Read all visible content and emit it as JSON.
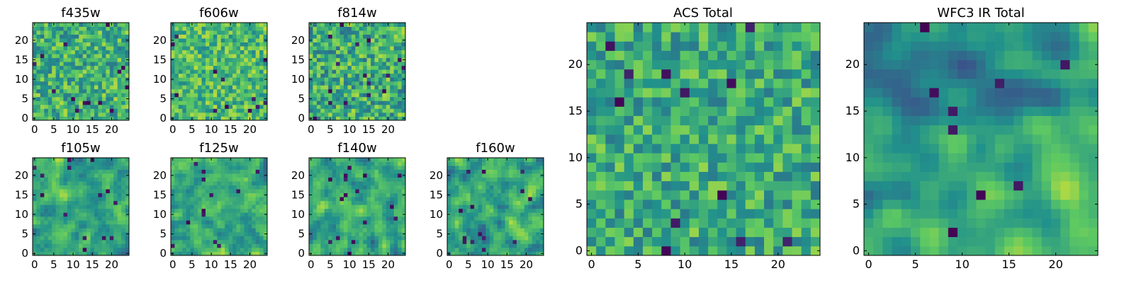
{
  "figure": {
    "background": "#ffffff",
    "colormap": "viridis",
    "colormap_stops": [
      "#440154",
      "#3b528b",
      "#21918c",
      "#5ec962",
      "#fde725"
    ]
  },
  "chart_data": [
    {
      "type": "heatmap",
      "title": "f435w",
      "grid_size": 25,
      "xlim": [
        -0.5,
        24.5
      ],
      "ylim": [
        -0.5,
        24.5
      ],
      "xticks": [
        0,
        5,
        10,
        15,
        20
      ],
      "yticks": [
        0,
        5,
        10,
        15,
        20
      ],
      "xlabel": "",
      "ylabel": "",
      "seed": 11,
      "smoothing": 0,
      "mean": 0.64,
      "spread": 0.24,
      "dark_spots": 14,
      "grid": false,
      "legend": "none"
    },
    {
      "type": "heatmap",
      "title": "f606w",
      "grid_size": 25,
      "xlim": [
        -0.5,
        24.5
      ],
      "ylim": [
        -0.5,
        24.5
      ],
      "xticks": [
        0,
        5,
        10,
        15,
        20
      ],
      "yticks": [
        0,
        5,
        10,
        15,
        20
      ],
      "xlabel": "",
      "ylabel": "",
      "seed": 23,
      "smoothing": 0,
      "mean": 0.68,
      "spread": 0.22,
      "dark_spots": 12,
      "grid": false,
      "legend": "none"
    },
    {
      "type": "heatmap",
      "title": "f814w",
      "grid_size": 25,
      "xlim": [
        -0.5,
        24.5
      ],
      "ylim": [
        -0.5,
        24.5
      ],
      "xticks": [
        0,
        5,
        10,
        15,
        20
      ],
      "yticks": [
        0,
        5,
        10,
        15,
        20
      ],
      "xlabel": "",
      "ylabel": "",
      "seed": 37,
      "smoothing": 0,
      "mean": 0.62,
      "spread": 0.26,
      "dark_spots": 16,
      "grid": false,
      "legend": "none"
    },
    {
      "type": "heatmap",
      "title": "f105w",
      "grid_size": 25,
      "xlim": [
        -0.5,
        24.5
      ],
      "ylim": [
        -0.5,
        24.5
      ],
      "xticks": [
        0,
        5,
        10,
        15,
        20
      ],
      "yticks": [
        0,
        5,
        10,
        15,
        20
      ],
      "xlabel": "",
      "ylabel": "",
      "seed": 41,
      "smoothing": 1,
      "mean": 0.6,
      "spread": 0.28,
      "dark_spots": 14,
      "grid": false,
      "legend": "none"
    },
    {
      "type": "heatmap",
      "title": "f125w",
      "grid_size": 25,
      "xlim": [
        -0.5,
        24.5
      ],
      "ylim": [
        -0.5,
        24.5
      ],
      "xticks": [
        0,
        5,
        10,
        15,
        20
      ],
      "yticks": [
        0,
        5,
        10,
        15,
        20
      ],
      "xlabel": "",
      "ylabel": "",
      "seed": 53,
      "smoothing": 1,
      "mean": 0.6,
      "spread": 0.28,
      "dark_spots": 12,
      "grid": false,
      "legend": "none"
    },
    {
      "type": "heatmap",
      "title": "f140w",
      "grid_size": 25,
      "xlim": [
        -0.5,
        24.5
      ],
      "ylim": [
        -0.5,
        24.5
      ],
      "xticks": [
        0,
        5,
        10,
        15,
        20
      ],
      "yticks": [
        0,
        5,
        10,
        15,
        20
      ],
      "xlabel": "",
      "ylabel": "",
      "seed": 67,
      "smoothing": 1,
      "mean": 0.58,
      "spread": 0.28,
      "dark_spots": 16,
      "grid": false,
      "legend": "none"
    },
    {
      "type": "heatmap",
      "title": "f160w",
      "grid_size": 25,
      "xlim": [
        -0.5,
        24.5
      ],
      "ylim": [
        -0.5,
        24.5
      ],
      "xticks": [
        0,
        5,
        10,
        15,
        20
      ],
      "yticks": [
        0,
        5,
        10,
        15,
        20
      ],
      "xlabel": "",
      "ylabel": "",
      "seed": 79,
      "smoothing": 1,
      "mean": 0.6,
      "spread": 0.28,
      "dark_spots": 14,
      "grid": false,
      "legend": "none"
    },
    {
      "type": "heatmap",
      "title": "ACS Total",
      "grid_size": 25,
      "xlim": [
        -0.5,
        24.5
      ],
      "ylim": [
        -0.5,
        24.5
      ],
      "xticks": [
        0,
        5,
        10,
        15,
        20
      ],
      "yticks": [
        0,
        5,
        10,
        15,
        20
      ],
      "xlabel": "",
      "ylabel": "",
      "seed": 89,
      "smoothing": 0,
      "mean": 0.62,
      "spread": 0.22,
      "dark_spots": 12,
      "grid": false,
      "legend": "none"
    },
    {
      "type": "heatmap",
      "title": "WFC3 IR Total",
      "grid_size": 25,
      "xlim": [
        -0.5,
        24.5
      ],
      "ylim": [
        -0.5,
        24.5
      ],
      "xticks": [
        0,
        5,
        10,
        15,
        20
      ],
      "yticks": [
        0,
        5,
        10,
        15,
        20
      ],
      "xlabel": "",
      "ylabel": "",
      "seed": 97,
      "smoothing": 2,
      "mean": 0.56,
      "spread": 0.26,
      "dark_spots": 9,
      "gradient": 0.18,
      "grid": false,
      "legend": "none"
    }
  ]
}
